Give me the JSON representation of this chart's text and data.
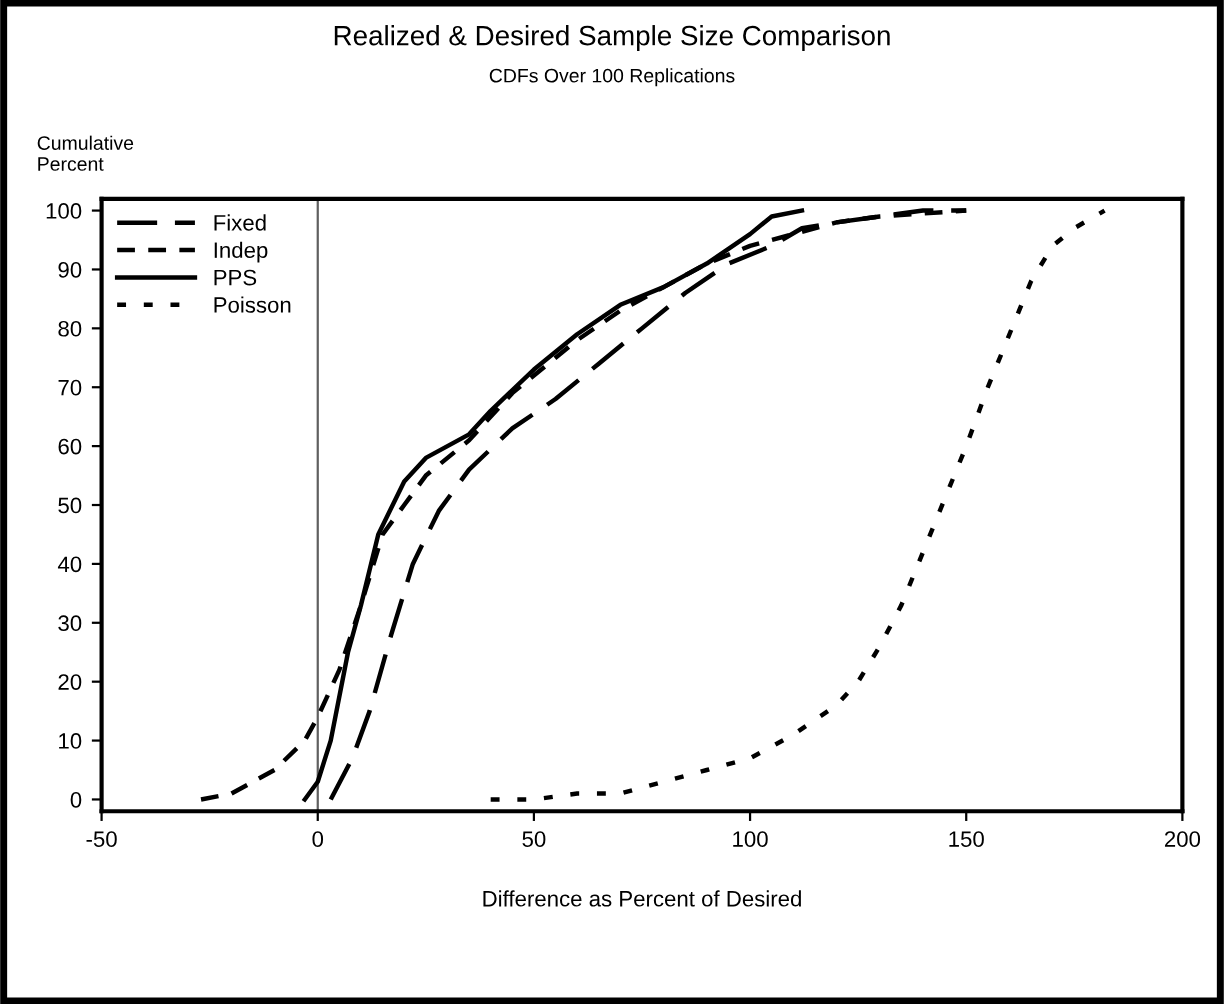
{
  "chart_data": {
    "type": "line",
    "title": "Realized & Desired Sample Size Comparison",
    "subtitle": "CDFs Over 100 Replications",
    "xlabel": "Difference as Percent of Desired",
    "ylabel": "Cumulative\nPercent",
    "xlim": [
      -50,
      200
    ],
    "xticks": [
      -50,
      0,
      50,
      100,
      150,
      200
    ],
    "ylim": [
      -2,
      102
    ],
    "yticks": [
      0,
      10,
      20,
      30,
      40,
      50,
      60,
      70,
      80,
      90,
      100
    ],
    "grid": false,
    "legend": "top left",
    "marker": "none",
    "ref_lines": [
      {
        "axis": "x",
        "value": 0,
        "color": "#606060",
        "line_style": "solid"
      }
    ],
    "series": [
      {
        "name": "Fixed",
        "color": "#000000",
        "line_style": "longdash",
        "x": [
          3,
          8,
          12,
          17,
          22,
          28,
          35,
          45,
          55,
          65,
          75,
          85,
          95,
          105,
          112,
          120,
          140,
          150
        ],
        "values": [
          0,
          7,
          15,
          28,
          40,
          49,
          56,
          63,
          68,
          74,
          80,
          86,
          91,
          94,
          97,
          98,
          100,
          100
        ]
      },
      {
        "name": "Indep",
        "color": "#000000",
        "line_style": "dashed",
        "x": [
          -27,
          -20,
          -10,
          -3,
          0,
          5,
          10,
          15,
          20,
          25,
          35,
          45,
          50,
          60,
          70,
          80,
          90,
          100,
          110,
          120,
          130,
          150
        ],
        "values": [
          0,
          1,
          5,
          10,
          14,
          22,
          33,
          45,
          50,
          55,
          61,
          69,
          72,
          78,
          83,
          87,
          91,
          94,
          96,
          98,
          99,
          100
        ]
      },
      {
        "name": "PPS",
        "color": "#000000",
        "line_style": "solid",
        "x": [
          -3,
          0,
          3,
          7,
          10,
          14,
          20,
          25,
          35,
          40,
          50,
          60,
          70,
          80,
          90,
          100,
          105,
          112
        ],
        "values": [
          0,
          3,
          10,
          25,
          33,
          45,
          54,
          58,
          62,
          66,
          73,
          79,
          84,
          87,
          91,
          96,
          99,
          100
        ]
      },
      {
        "name": "Poisson",
        "color": "#000000",
        "line_style": "dotted",
        "x": [
          40,
          50,
          60,
          70,
          80,
          90,
          100,
          110,
          120,
          125,
          130,
          135,
          140,
          145,
          150,
          155,
          160,
          165,
          170,
          175,
          182
        ],
        "values": [
          0,
          0,
          1,
          1,
          3,
          5,
          7,
          11,
          16,
          20,
          26,
          33,
          42,
          51,
          60,
          70,
          79,
          88,
          94,
          97,
          100
        ]
      }
    ]
  }
}
